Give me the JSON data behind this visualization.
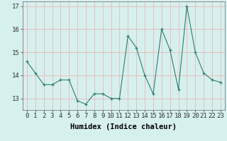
{
  "x": [
    0,
    1,
    2,
    3,
    4,
    5,
    6,
    7,
    8,
    9,
    10,
    11,
    12,
    13,
    14,
    15,
    16,
    17,
    18,
    19,
    20,
    21,
    22,
    23
  ],
  "y": [
    14.6,
    14.1,
    13.6,
    13.6,
    13.8,
    13.8,
    12.9,
    12.75,
    13.2,
    13.2,
    13.0,
    13.0,
    15.7,
    15.2,
    14.0,
    13.2,
    16.0,
    15.1,
    13.4,
    17.0,
    15.0,
    14.1,
    13.8,
    13.7
  ],
  "xlabel": "Humidex (Indice chaleur)",
  "ylim": [
    12.5,
    17.2
  ],
  "yticks": [
    13,
    14,
    15,
    16,
    17
  ],
  "xticks": [
    0,
    1,
    2,
    3,
    4,
    5,
    6,
    7,
    8,
    9,
    10,
    11,
    12,
    13,
    14,
    15,
    16,
    17,
    18,
    19,
    20,
    21,
    22,
    23
  ],
  "line_color": "#2e7d72",
  "marker": "+",
  "bg_color": "#d6f0ee",
  "grid_color": "#e8b8b8",
  "tick_fontsize": 6.5,
  "label_fontsize": 7.5
}
